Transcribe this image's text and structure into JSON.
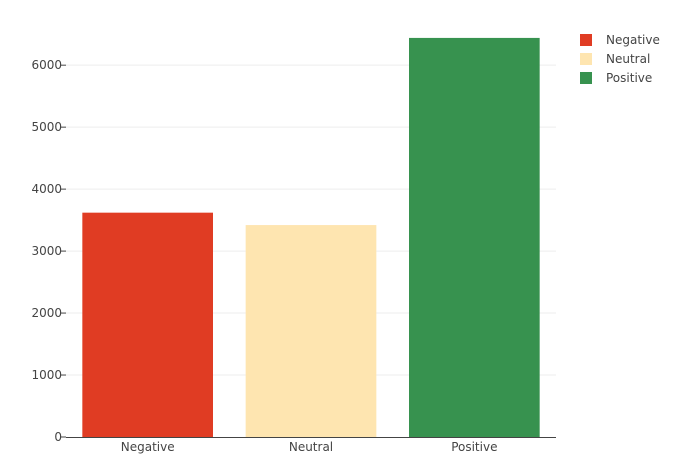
{
  "chart_data": {
    "type": "bar",
    "categories": [
      "Negative",
      "Neutral",
      "Positive"
    ],
    "values": [
      3620,
      3420,
      6440
    ],
    "colors": [
      "#e03c23",
      "#fee5b0",
      "#37924f"
    ],
    "ylim": [
      0,
      6600
    ],
    "yticks": [
      0,
      1000,
      2000,
      3000,
      4000,
      5000,
      6000
    ],
    "grid": true,
    "legend": {
      "placement": "top-right",
      "entries": [
        "Negative",
        "Neutral",
        "Positive"
      ]
    }
  }
}
